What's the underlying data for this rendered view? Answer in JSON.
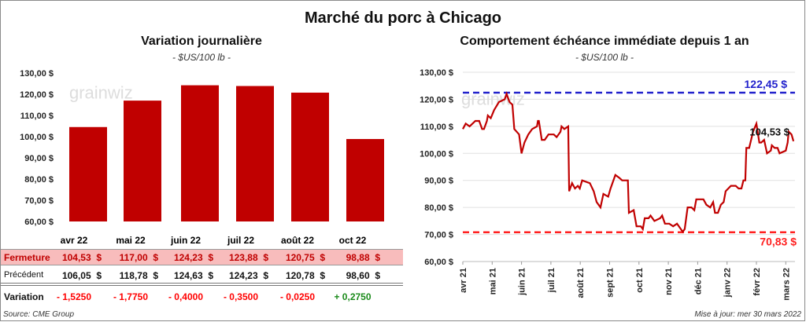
{
  "title": "Marché du porc à Chicago",
  "source": "Source: CME Group",
  "updated": "Mise à jour: mer 30 mars 2022",
  "watermark": "grainwiz",
  "colors": {
    "bar": "#c00000",
    "line": "#c00000",
    "max_line": "#2222cc",
    "min_line": "#ff2020",
    "fermeture_bg": "#f8bcbc",
    "negative": "#ff0000",
    "positive": "#1a8a1a"
  },
  "chart_data": [
    {
      "type": "bar",
      "title": "Variation journalière",
      "subtitle": "- $US/100 lb -",
      "categories": [
        "avr 22",
        "mai 22",
        "juin 22",
        "juil 22",
        "août 22",
        "oct 22"
      ],
      "values": [
        104.53,
        117.0,
        124.23,
        123.88,
        120.75,
        98.88
      ],
      "ylim": [
        60,
        130
      ],
      "yticks": [
        "60,00 $",
        "70,00 $",
        "80,00 $",
        "90,00 $",
        "100,00 $",
        "110,00 $",
        "120,00 $",
        "130,00 $"
      ],
      "grid": false
    },
    {
      "type": "line",
      "title": "Comportement échéance immédiate depuis 1 an",
      "subtitle": "- $US/100 lb -",
      "ylim": [
        60,
        130
      ],
      "yticks": [
        "60,00 $",
        "70,00 $",
        "80,00 $",
        "90,00 $",
        "100,00 $",
        "110,00 $",
        "120,00 $",
        "130,00 $"
      ],
      "xticks": [
        "avr 21",
        "mai 21",
        "juin 21",
        "juil 21",
        "août 21",
        "sept 21",
        "oct 21",
        "nov 21",
        "déc 21",
        "janv 22",
        "févr 22",
        "mars 22"
      ],
      "grid": true,
      "max": {
        "value": 122.45,
        "label": "122,45 $"
      },
      "min": {
        "value": 70.83,
        "label": "70,83 $"
      },
      "last": {
        "value": 104.53,
        "label": "104,53 $"
      },
      "x": [
        "2021-04-01",
        "2021-04-04",
        "2021-04-08",
        "2021-04-14",
        "2021-04-18",
        "2021-04-21",
        "2021-04-23",
        "2021-04-26",
        "2021-04-27",
        "2021-04-30",
        "2021-05-03",
        "2021-05-08",
        "2021-05-14",
        "2021-05-16",
        "2021-05-19",
        "2021-05-22",
        "2021-05-24",
        "2021-05-29",
        "2021-06-01",
        "2021-06-04",
        "2021-06-08",
        "2021-06-12",
        "2021-06-17",
        "2021-06-18",
        "2021-06-19",
        "2021-06-22",
        "2021-06-25",
        "2021-06-29",
        "2021-07-04",
        "2021-07-07",
        "2021-07-11",
        "2021-07-12",
        "2021-07-15",
        "2021-07-19",
        "2021-07-20",
        "2021-07-23",
        "2021-07-26",
        "2021-07-29",
        "2021-07-31",
        "2021-08-03",
        "2021-08-11",
        "2021-08-15",
        "2021-08-18",
        "2021-08-22",
        "2021-08-25",
        "2021-08-30",
        "2021-09-02",
        "2021-09-07",
        "2021-09-11",
        "2021-09-14",
        "2021-09-20",
        "2021-09-21",
        "2021-09-26",
        "2021-09-29",
        "2021-10-03",
        "2021-10-05",
        "2021-10-07",
        "2021-10-11",
        "2021-10-13",
        "2021-10-17",
        "2021-10-23",
        "2021-10-25",
        "2021-10-28",
        "2021-11-02",
        "2021-11-06",
        "2021-11-10",
        "2021-11-16",
        "2021-11-18",
        "2021-11-21",
        "2021-11-25",
        "2021-11-28",
        "2021-11-30",
        "2021-12-07",
        "2021-12-10",
        "2021-12-14",
        "2021-12-17",
        "2021-12-19",
        "2021-12-22",
        "2021-12-25",
        "2021-12-28",
        "2021-12-30",
        "2022-01-05",
        "2022-01-10",
        "2022-01-13",
        "2022-01-16",
        "2022-01-18",
        "2022-01-20",
        "2022-01-21",
        "2022-01-24",
        "2022-01-28",
        "2022-02-01",
        "2022-02-04",
        "2022-02-06",
        "2022-02-09",
        "2022-02-12",
        "2022-02-16",
        "2022-02-17",
        "2022-02-20",
        "2022-02-23",
        "2022-02-25",
        "2022-03-01",
        "2022-03-03",
        "2022-03-04",
        "2022-03-07",
        "2022-03-09"
      ],
      "y": [
        109,
        111,
        110,
        112,
        112,
        109,
        109,
        112,
        114,
        113,
        116,
        119,
        120,
        122,
        119,
        118,
        109,
        107,
        100,
        104,
        107,
        109,
        110,
        112,
        112,
        105,
        105,
        107,
        107,
        106,
        108,
        110,
        109,
        110,
        86,
        89,
        87,
        88,
        87,
        90,
        89,
        86,
        82,
        80,
        85,
        84,
        87,
        92,
        91,
        90,
        90,
        78,
        79,
        73,
        73,
        72,
        76,
        76,
        77,
        75,
        76,
        77,
        74,
        74,
        73,
        74,
        71,
        72,
        80,
        80,
        79,
        83,
        83,
        81,
        80,
        82,
        78,
        78,
        81,
        82,
        86,
        88,
        88,
        87,
        87,
        90,
        90,
        102,
        102,
        108,
        111,
        104,
        104,
        105,
        100,
        101,
        103,
        102,
        102,
        100,
        101,
        104,
        108,
        107,
        104.5
      ]
    }
  ],
  "table": {
    "columns": [
      "avr 22",
      "mai 22",
      "juin 22",
      "juil 22",
      "août 22",
      "oct 22"
    ],
    "rows": [
      {
        "label": "Fermeture",
        "values": [
          "104,53  $",
          "117,00  $",
          "124,23  $",
          "123,88  $",
          "120,75  $",
          "98,88  $"
        ]
      },
      {
        "label": "Précédent",
        "values": [
          "106,05  $",
          "118,78  $",
          "124,63  $",
          "124,23  $",
          "120,78  $",
          "98,60  $"
        ]
      },
      {
        "label": "Variation",
        "values": [
          "- 1,5250",
          "- 1,7750",
          "- 0,4000",
          "- 0,3500",
          "- 0,0250",
          "+ 0,2750"
        ]
      }
    ]
  }
}
